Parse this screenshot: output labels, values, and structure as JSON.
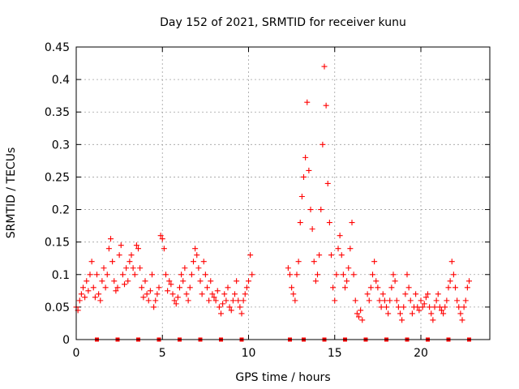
{
  "chart_data": {
    "type": "scatter",
    "title": "Day 152 of 2021, SRMTID for receiver kunu",
    "xlabel": "GPS time / hours",
    "ylabel": "SRMTID / TECUs",
    "xlim": [
      0,
      24
    ],
    "ylim": [
      0,
      0.45
    ],
    "x_ticks": [
      0,
      5,
      10,
      15,
      20
    ],
    "x_tick_labels": [
      "0",
      "5",
      "10",
      "15",
      "20"
    ],
    "y_ticks": [
      0,
      0.05,
      0.1,
      0.15,
      0.2,
      0.25,
      0.3,
      0.35,
      0.4,
      0.45
    ],
    "y_tick_labels": [
      "0",
      "0.05",
      "0.1",
      "0.15",
      "0.2",
      "0.25",
      "0.3",
      "0.35",
      "0.4",
      "0.45"
    ],
    "grid": true,
    "marker": "plus",
    "color": "#ff0000",
    "series": [
      {
        "name": "SRMTID",
        "points": [
          [
            0.0,
            0.05
          ],
          [
            0.1,
            0.045
          ],
          [
            0.2,
            0.06
          ],
          [
            0.3,
            0.07
          ],
          [
            0.4,
            0.08
          ],
          [
            0.5,
            0.065
          ],
          [
            0.6,
            0.09
          ],
          [
            0.7,
            0.075
          ],
          [
            0.8,
            0.1
          ],
          [
            0.9,
            0.12
          ],
          [
            1.0,
            0.08
          ],
          [
            1.1,
            0.065
          ],
          [
            1.2,
            0.1
          ],
          [
            1.3,
            0.07
          ],
          [
            1.4,
            0.06
          ],
          [
            1.5,
            0.09
          ],
          [
            1.6,
            0.11
          ],
          [
            1.7,
            0.08
          ],
          [
            1.8,
            0.1
          ],
          [
            1.9,
            0.14
          ],
          [
            2.0,
            0.155
          ],
          [
            2.1,
            0.12
          ],
          [
            2.2,
            0.09
          ],
          [
            2.3,
            0.075
          ],
          [
            2.4,
            0.08
          ],
          [
            2.5,
            0.13
          ],
          [
            2.6,
            0.145
          ],
          [
            2.7,
            0.1
          ],
          [
            2.8,
            0.085
          ],
          [
            2.9,
            0.11
          ],
          [
            3.0,
            0.09
          ],
          [
            3.1,
            0.12
          ],
          [
            3.2,
            0.13
          ],
          [
            3.3,
            0.11
          ],
          [
            3.4,
            0.1
          ],
          [
            3.5,
            0.145
          ],
          [
            3.6,
            0.14
          ],
          [
            3.7,
            0.11
          ],
          [
            3.8,
            0.08
          ],
          [
            3.9,
            0.065
          ],
          [
            4.0,
            0.09
          ],
          [
            4.1,
            0.07
          ],
          [
            4.2,
            0.06
          ],
          [
            4.3,
            0.075
          ],
          [
            4.4,
            0.1
          ],
          [
            4.5,
            0.05
          ],
          [
            4.6,
            0.06
          ],
          [
            4.7,
            0.07
          ],
          [
            4.8,
            0.08
          ],
          [
            4.9,
            0.16
          ],
          [
            5.0,
            0.155
          ],
          [
            5.1,
            0.14
          ],
          [
            5.2,
            0.1
          ],
          [
            5.3,
            0.075
          ],
          [
            5.4,
            0.09
          ],
          [
            5.5,
            0.085
          ],
          [
            5.6,
            0.07
          ],
          [
            5.7,
            0.06
          ],
          [
            5.8,
            0.055
          ],
          [
            5.9,
            0.065
          ],
          [
            6.0,
            0.08
          ],
          [
            6.1,
            0.1
          ],
          [
            6.2,
            0.09
          ],
          [
            6.3,
            0.11
          ],
          [
            6.4,
            0.07
          ],
          [
            6.5,
            0.06
          ],
          [
            6.6,
            0.08
          ],
          [
            6.7,
            0.1
          ],
          [
            6.8,
            0.12
          ],
          [
            6.9,
            0.14
          ],
          [
            7.0,
            0.13
          ],
          [
            7.1,
            0.11
          ],
          [
            7.2,
            0.09
          ],
          [
            7.3,
            0.07
          ],
          [
            7.4,
            0.12
          ],
          [
            7.5,
            0.1
          ],
          [
            7.6,
            0.08
          ],
          [
            7.7,
            0.06
          ],
          [
            7.8,
            0.09
          ],
          [
            7.9,
            0.07
          ],
          [
            8.0,
            0.065
          ],
          [
            8.1,
            0.06
          ],
          [
            8.2,
            0.075
          ],
          [
            8.3,
            0.05
          ],
          [
            8.4,
            0.04
          ],
          [
            8.5,
            0.055
          ],
          [
            8.6,
            0.07
          ],
          [
            8.7,
            0.06
          ],
          [
            8.8,
            0.08
          ],
          [
            8.9,
            0.05
          ],
          [
            9.0,
            0.045
          ],
          [
            9.1,
            0.06
          ],
          [
            9.2,
            0.07
          ],
          [
            9.3,
            0.09
          ],
          [
            9.4,
            0.06
          ],
          [
            9.5,
            0.05
          ],
          [
            9.6,
            0.04
          ],
          [
            9.7,
            0.06
          ],
          [
            9.8,
            0.07
          ],
          [
            9.9,
            0.08
          ],
          [
            10.0,
            0.09
          ],
          [
            10.1,
            0.13
          ],
          [
            10.2,
            0.1
          ],
          [
            12.3,
            0.11
          ],
          [
            12.4,
            0.1
          ],
          [
            12.5,
            0.08
          ],
          [
            12.6,
            0.07
          ],
          [
            12.7,
            0.06
          ],
          [
            12.8,
            0.1
          ],
          [
            12.9,
            0.12
          ],
          [
            13.0,
            0.18
          ],
          [
            13.1,
            0.22
          ],
          [
            13.2,
            0.25
          ],
          [
            13.3,
            0.28
          ],
          [
            13.4,
            0.365
          ],
          [
            13.5,
            0.26
          ],
          [
            13.6,
            0.2
          ],
          [
            13.7,
            0.17
          ],
          [
            13.8,
            0.12
          ],
          [
            13.9,
            0.09
          ],
          [
            14.0,
            0.1
          ],
          [
            14.1,
            0.13
          ],
          [
            14.2,
            0.2
          ],
          [
            14.3,
            0.3
          ],
          [
            14.4,
            0.42
          ],
          [
            14.5,
            0.36
          ],
          [
            14.6,
            0.24
          ],
          [
            14.7,
            0.18
          ],
          [
            14.8,
            0.13
          ],
          [
            14.9,
            0.08
          ],
          [
            15.0,
            0.06
          ],
          [
            15.1,
            0.1
          ],
          [
            15.2,
            0.14
          ],
          [
            15.3,
            0.16
          ],
          [
            15.4,
            0.13
          ],
          [
            15.5,
            0.1
          ],
          [
            15.6,
            0.08
          ],
          [
            15.7,
            0.09
          ],
          [
            15.8,
            0.11
          ],
          [
            15.9,
            0.14
          ],
          [
            16.0,
            0.18
          ],
          [
            16.1,
            0.1
          ],
          [
            16.2,
            0.06
          ],
          [
            16.3,
            0.04
          ],
          [
            16.4,
            0.035
          ],
          [
            16.5,
            0.045
          ],
          [
            16.6,
            0.03
          ],
          [
            16.9,
            0.07
          ],
          [
            17.0,
            0.06
          ],
          [
            17.1,
            0.08
          ],
          [
            17.2,
            0.1
          ],
          [
            17.3,
            0.12
          ],
          [
            17.4,
            0.09
          ],
          [
            17.5,
            0.08
          ],
          [
            17.6,
            0.06
          ],
          [
            17.7,
            0.05
          ],
          [
            17.8,
            0.07
          ],
          [
            17.9,
            0.06
          ],
          [
            18.0,
            0.05
          ],
          [
            18.1,
            0.04
          ],
          [
            18.2,
            0.06
          ],
          [
            18.3,
            0.08
          ],
          [
            18.4,
            0.1
          ],
          [
            18.5,
            0.09
          ],
          [
            18.6,
            0.06
          ],
          [
            18.7,
            0.05
          ],
          [
            18.8,
            0.04
          ],
          [
            18.9,
            0.03
          ],
          [
            19.0,
            0.05
          ],
          [
            19.1,
            0.07
          ],
          [
            19.2,
            0.1
          ],
          [
            19.3,
            0.08
          ],
          [
            19.4,
            0.06
          ],
          [
            19.5,
            0.04
          ],
          [
            19.6,
            0.05
          ],
          [
            19.7,
            0.07
          ],
          [
            19.8,
            0.05
          ],
          [
            19.9,
            0.045
          ],
          [
            20.0,
            0.06
          ],
          [
            20.1,
            0.05
          ],
          [
            20.2,
            0.055
          ],
          [
            20.3,
            0.065
          ],
          [
            20.4,
            0.07
          ],
          [
            20.5,
            0.05
          ],
          [
            20.6,
            0.04
          ],
          [
            20.7,
            0.03
          ],
          [
            20.8,
            0.05
          ],
          [
            20.9,
            0.06
          ],
          [
            21.0,
            0.07
          ],
          [
            21.1,
            0.05
          ],
          [
            21.2,
            0.045
          ],
          [
            21.3,
            0.04
          ],
          [
            21.4,
            0.05
          ],
          [
            21.5,
            0.06
          ],
          [
            21.6,
            0.08
          ],
          [
            21.7,
            0.09
          ],
          [
            21.8,
            0.12
          ],
          [
            21.9,
            0.1
          ],
          [
            22.0,
            0.08
          ],
          [
            22.1,
            0.06
          ],
          [
            22.2,
            0.05
          ],
          [
            22.3,
            0.04
          ],
          [
            22.4,
            0.03
          ],
          [
            22.5,
            0.05
          ],
          [
            22.6,
            0.06
          ],
          [
            22.7,
            0.08
          ],
          [
            22.8,
            0.09
          ]
        ]
      },
      {
        "name": "baseline markers",
        "marker": "square",
        "points": [
          [
            1.2,
            0
          ],
          [
            2.4,
            0
          ],
          [
            3.6,
            0
          ],
          [
            4.8,
            0
          ],
          [
            6.0,
            0
          ],
          [
            7.2,
            0
          ],
          [
            8.4,
            0
          ],
          [
            9.6,
            0
          ],
          [
            12.4,
            0
          ],
          [
            13.2,
            0
          ],
          [
            14.4,
            0
          ],
          [
            15.6,
            0
          ],
          [
            16.8,
            0
          ],
          [
            18.0,
            0
          ],
          [
            19.2,
            0
          ],
          [
            20.4,
            0
          ],
          [
            21.6,
            0
          ],
          [
            22.8,
            0
          ]
        ]
      }
    ]
  }
}
